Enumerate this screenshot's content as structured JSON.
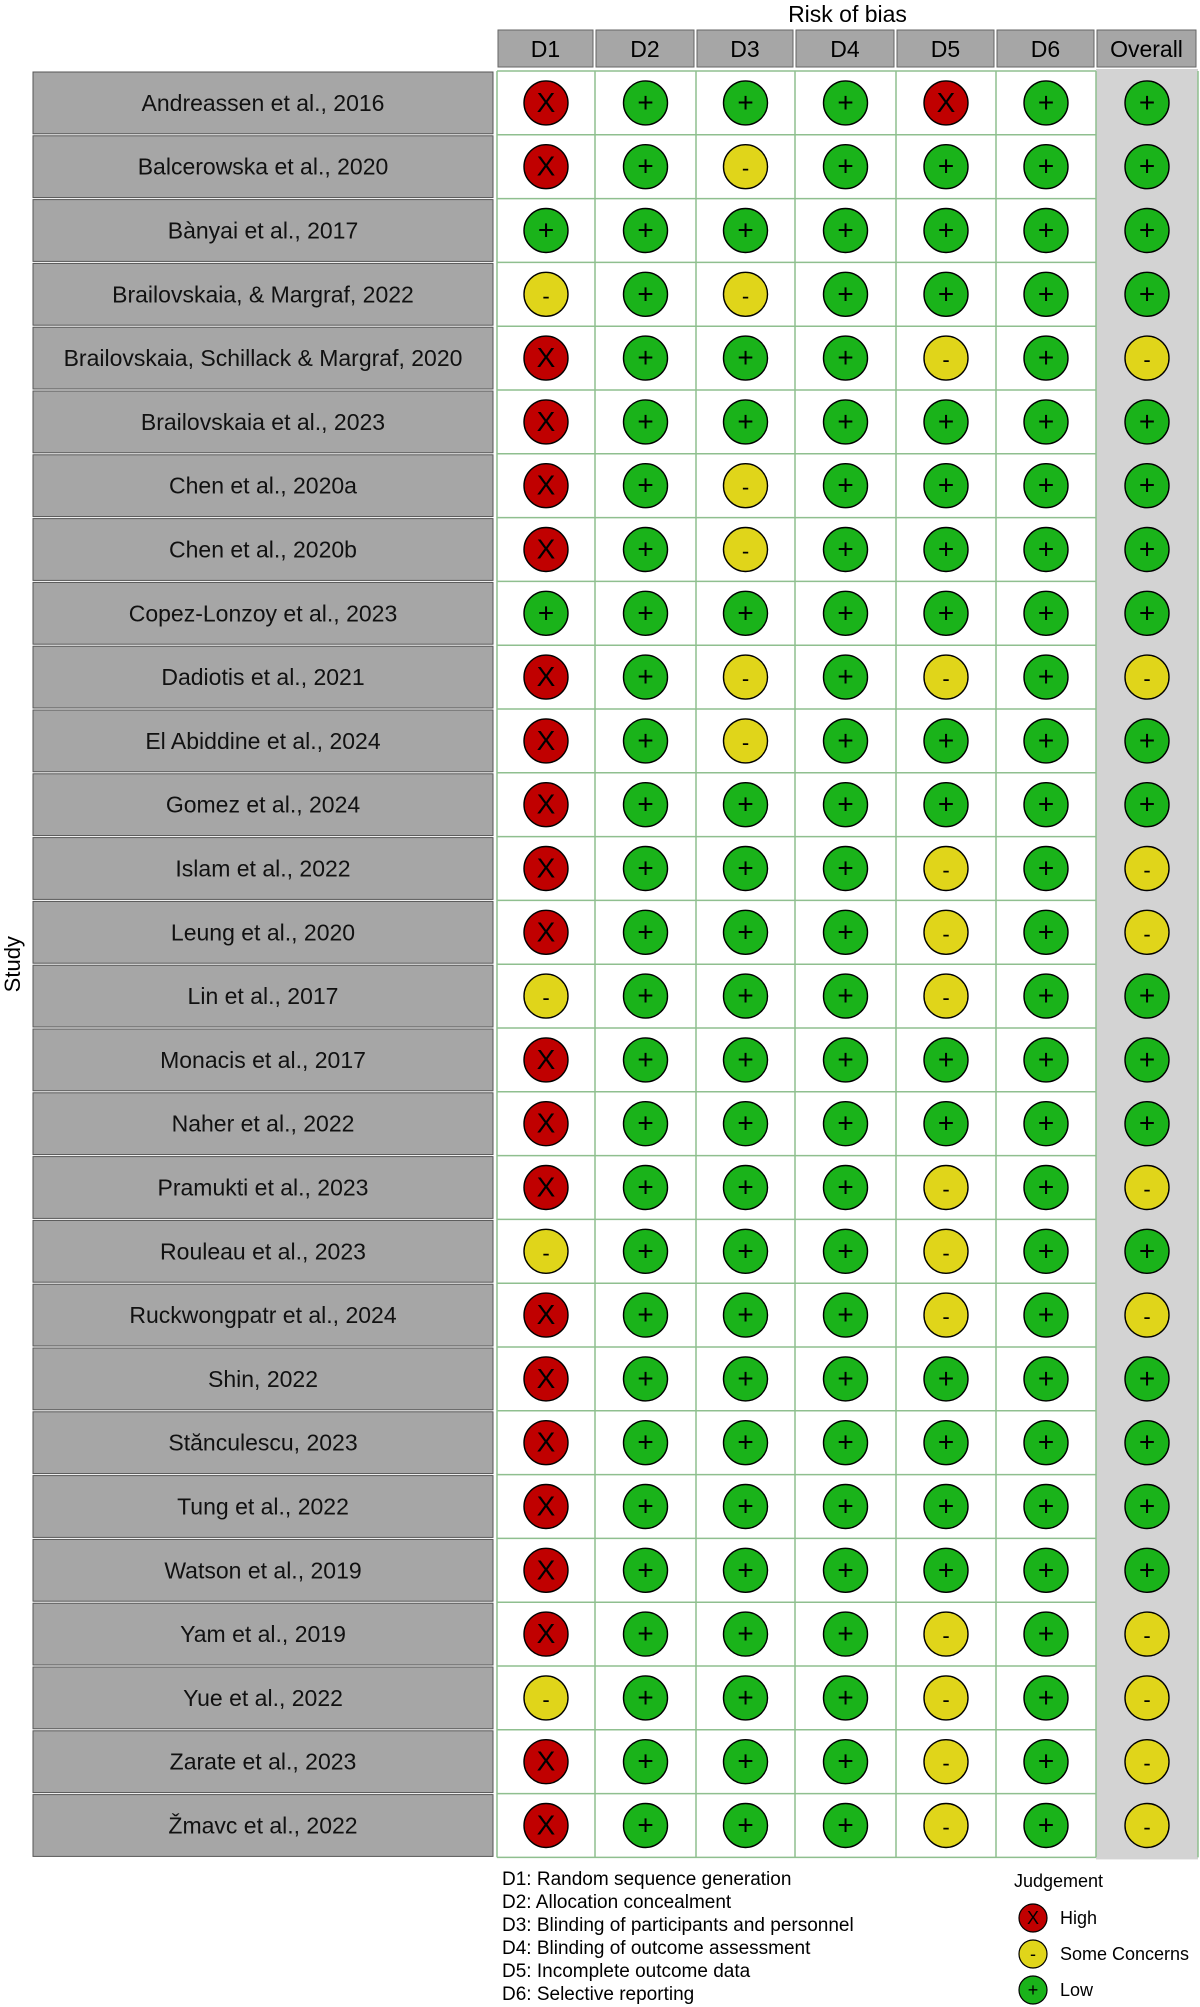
{
  "chart_data": {
    "type": "table",
    "title": "Risk of bias",
    "y_axis_label": "Study",
    "domains": [
      "D1",
      "D2",
      "D3",
      "D4",
      "D5",
      "D6",
      "Overall"
    ],
    "judgement_symbols": {
      "High": "X",
      "Some Concerns": "-",
      "Low": "+"
    },
    "colors": {
      "High": "#c00000",
      "Some Concerns": "#e0d51a",
      "Low": "#1ab31a",
      "study_cell": "#a6a6a6",
      "overall_column": "#d3d3d3",
      "header_cell": "#a6a6a6",
      "grid": "#8fbf8f"
    },
    "studies": [
      {
        "study": "Andreassen et al., 2016",
        "judgements": [
          "High",
          "Low",
          "Low",
          "Low",
          "High",
          "Low",
          "Low"
        ]
      },
      {
        "study": "Balcerowska et al., 2020",
        "judgements": [
          "High",
          "Low",
          "Some Concerns",
          "Low",
          "Low",
          "Low",
          "Low"
        ]
      },
      {
        "study": "Bànyai et al., 2017",
        "judgements": [
          "Low",
          "Low",
          "Low",
          "Low",
          "Low",
          "Low",
          "Low"
        ]
      },
      {
        "study": "Brailovskaia, & Margraf, 2022",
        "judgements": [
          "Some Concerns",
          "Low",
          "Some Concerns",
          "Low",
          "Low",
          "Low",
          "Low"
        ]
      },
      {
        "study": "Brailovskaia, Schillack & Margraf, 2020",
        "judgements": [
          "High",
          "Low",
          "Low",
          "Low",
          "Some Concerns",
          "Low",
          "Some Concerns"
        ]
      },
      {
        "study": "Brailovskaia et al., 2023",
        "judgements": [
          "High",
          "Low",
          "Low",
          "Low",
          "Low",
          "Low",
          "Low"
        ]
      },
      {
        "study": "Chen et al., 2020a",
        "judgements": [
          "High",
          "Low",
          "Some Concerns",
          "Low",
          "Low",
          "Low",
          "Low"
        ]
      },
      {
        "study": "Chen et al., 2020b",
        "judgements": [
          "High",
          "Low",
          "Some Concerns",
          "Low",
          "Low",
          "Low",
          "Low"
        ]
      },
      {
        "study": "Copez-Lonzoy et al., 2023",
        "judgements": [
          "Low",
          "Low",
          "Low",
          "Low",
          "Low",
          "Low",
          "Low"
        ]
      },
      {
        "study": "Dadiotis et al., 2021",
        "judgements": [
          "High",
          "Low",
          "Some Concerns",
          "Low",
          "Some Concerns",
          "Low",
          "Some Concerns"
        ]
      },
      {
        "study": "El Abiddine et al., 2024",
        "judgements": [
          "High",
          "Low",
          "Some Concerns",
          "Low",
          "Low",
          "Low",
          "Low"
        ]
      },
      {
        "study": "Gomez et al., 2024",
        "judgements": [
          "High",
          "Low",
          "Low",
          "Low",
          "Low",
          "Low",
          "Low"
        ]
      },
      {
        "study": "Islam et al., 2022",
        "judgements": [
          "High",
          "Low",
          "Low",
          "Low",
          "Some Concerns",
          "Low",
          "Some Concerns"
        ]
      },
      {
        "study": "Leung et al., 2020",
        "judgements": [
          "High",
          "Low",
          "Low",
          "Low",
          "Some Concerns",
          "Low",
          "Some Concerns"
        ]
      },
      {
        "study": "Lin et al., 2017",
        "judgements": [
          "Some Concerns",
          "Low",
          "Low",
          "Low",
          "Some Concerns",
          "Low",
          "Low"
        ]
      },
      {
        "study": "Monacis et al., 2017",
        "judgements": [
          "High",
          "Low",
          "Low",
          "Low",
          "Low",
          "Low",
          "Low"
        ]
      },
      {
        "study": "Naher et al., 2022",
        "judgements": [
          "High",
          "Low",
          "Low",
          "Low",
          "Low",
          "Low",
          "Low"
        ]
      },
      {
        "study": "Pramukti et al., 2023",
        "judgements": [
          "High",
          "Low",
          "Low",
          "Low",
          "Some Concerns",
          "Low",
          "Some Concerns"
        ]
      },
      {
        "study": "Rouleau et al., 2023",
        "judgements": [
          "Some Concerns",
          "Low",
          "Low",
          "Low",
          "Some Concerns",
          "Low",
          "Low"
        ]
      },
      {
        "study": "Ruckwongpatr et al., 2024",
        "judgements": [
          "High",
          "Low",
          "Low",
          "Low",
          "Some Concerns",
          "Low",
          "Some Concerns"
        ]
      },
      {
        "study": "Shin, 2022",
        "judgements": [
          "High",
          "Low",
          "Low",
          "Low",
          "Low",
          "Low",
          "Low"
        ]
      },
      {
        "study": "Stănculescu, 2023",
        "judgements": [
          "High",
          "Low",
          "Low",
          "Low",
          "Low",
          "Low",
          "Low"
        ]
      },
      {
        "study": "Tung et al., 2022",
        "judgements": [
          "High",
          "Low",
          "Low",
          "Low",
          "Low",
          "Low",
          "Low"
        ]
      },
      {
        "study": "Watson et al., 2019",
        "judgements": [
          "High",
          "Low",
          "Low",
          "Low",
          "Low",
          "Low",
          "Low"
        ]
      },
      {
        "study": "Yam et al., 2019",
        "judgements": [
          "High",
          "Low",
          "Low",
          "Low",
          "Some Concerns",
          "Low",
          "Some Concerns"
        ]
      },
      {
        "study": "Yue et al., 2022",
        "judgements": [
          "Some Concerns",
          "Low",
          "Low",
          "Low",
          "Some Concerns",
          "Low",
          "Some Concerns"
        ]
      },
      {
        "study": "Zarate et al., 2023",
        "judgements": [
          "High",
          "Low",
          "Low",
          "Low",
          "Some Concerns",
          "Low",
          "Some Concerns"
        ]
      },
      {
        "study": "Žmavc et al., 2022",
        "judgements": [
          "High",
          "Low",
          "Low",
          "Low",
          "Some Concerns",
          "Low",
          "Some Concerns"
        ]
      }
    ],
    "domain_descriptions": [
      "D1: Random sequence generation",
      "D2: Allocation concealment",
      "D3: Blinding of participants and personnel",
      "D4: Blinding of outcome assessment",
      "D5: Incomplete outcome data",
      "D6: Selective reporting"
    ],
    "legend": {
      "title": "Judgement",
      "entries": [
        {
          "label": "High",
          "level": "High"
        },
        {
          "label": "Some Concerns",
          "level": "Some Concerns"
        },
        {
          "label": "Low",
          "level": "Low"
        }
      ]
    }
  }
}
